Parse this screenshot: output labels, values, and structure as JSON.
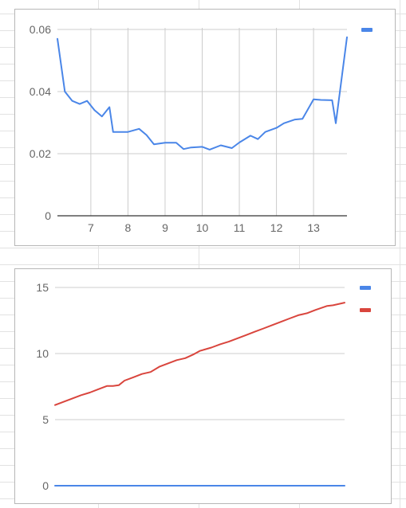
{
  "colors": {
    "blue": "#4a86e8",
    "red": "#d9453d",
    "grid": "#cccccc",
    "axis": "#333333",
    "text": "#666666"
  },
  "chart_data": [
    {
      "type": "line",
      "title": "",
      "xlabel": "",
      "ylabel": "",
      "xlim": [
        6.1,
        13.9
      ],
      "ylim": [
        0,
        0.06
      ],
      "x_ticks": [
        "7",
        "8",
        "9",
        "10",
        "11",
        "12",
        "13"
      ],
      "x_tick_values": [
        7,
        8,
        9,
        10,
        11,
        12,
        13
      ],
      "y_ticks": [
        "0",
        "0.02",
        "0.04",
        "0.06"
      ],
      "y_tick_values": [
        0,
        0.02,
        0.04,
        0.06
      ],
      "grid": true,
      "legend": "top-right",
      "series": [
        {
          "color": "#4a86e8",
          "x": [
            6.1,
            6.3,
            6.5,
            6.7,
            6.9,
            7.1,
            7.3,
            7.5,
            7.6,
            7.8,
            8.0,
            8.3,
            8.5,
            8.7,
            9.0,
            9.3,
            9.5,
            9.7,
            10.0,
            10.2,
            10.5,
            10.8,
            11.0,
            11.3,
            11.5,
            11.7,
            12.0,
            12.2,
            12.5,
            12.7,
            13.0,
            13.2,
            13.5,
            13.6,
            13.9
          ],
          "y": [
            0.057,
            0.04,
            0.037,
            0.036,
            0.037,
            0.034,
            0.032,
            0.035,
            0.027,
            0.027,
            0.027,
            0.028,
            0.026,
            0.023,
            0.0235,
            0.0235,
            0.0215,
            0.022,
            0.0222,
            0.0213,
            0.0227,
            0.0218,
            0.0236,
            0.0258,
            0.0247,
            0.027,
            0.0283,
            0.0298,
            0.031,
            0.0312,
            0.0375,
            0.0373,
            0.0372,
            0.0298,
            0.0575
          ]
        }
      ]
    },
    {
      "type": "line",
      "title": "",
      "xlabel": "",
      "ylabel": "",
      "xlim": [
        0,
        100
      ],
      "ylim": [
        0,
        15
      ],
      "y_ticks": [
        "0",
        "5",
        "10",
        "15"
      ],
      "y_tick_values": [
        0,
        5,
        10,
        15
      ],
      "grid": true,
      "legend": "top-right",
      "series": [
        {
          "color": "#4a86e8",
          "x": [
            0,
            100
          ],
          "y": [
            0,
            0
          ]
        },
        {
          "color": "#d9453d",
          "x": [
            0,
            3,
            6,
            9,
            12,
            15,
            18,
            20,
            22,
            24,
            27,
            30,
            33,
            36,
            39,
            42,
            45,
            48,
            50,
            54,
            57,
            60,
            63,
            66,
            69,
            72,
            75,
            78,
            81,
            84,
            87,
            90,
            92,
            94,
            96,
            100
          ],
          "y": [
            6.1,
            6.35,
            6.6,
            6.85,
            7.05,
            7.3,
            7.55,
            7.55,
            7.6,
            7.95,
            8.2,
            8.45,
            8.6,
            9.0,
            9.25,
            9.5,
            9.65,
            9.95,
            10.2,
            10.45,
            10.7,
            10.9,
            11.15,
            11.4,
            11.65,
            11.9,
            12.15,
            12.4,
            12.65,
            12.9,
            13.05,
            13.3,
            13.45,
            13.6,
            13.65,
            13.85
          ]
        }
      ]
    }
  ]
}
